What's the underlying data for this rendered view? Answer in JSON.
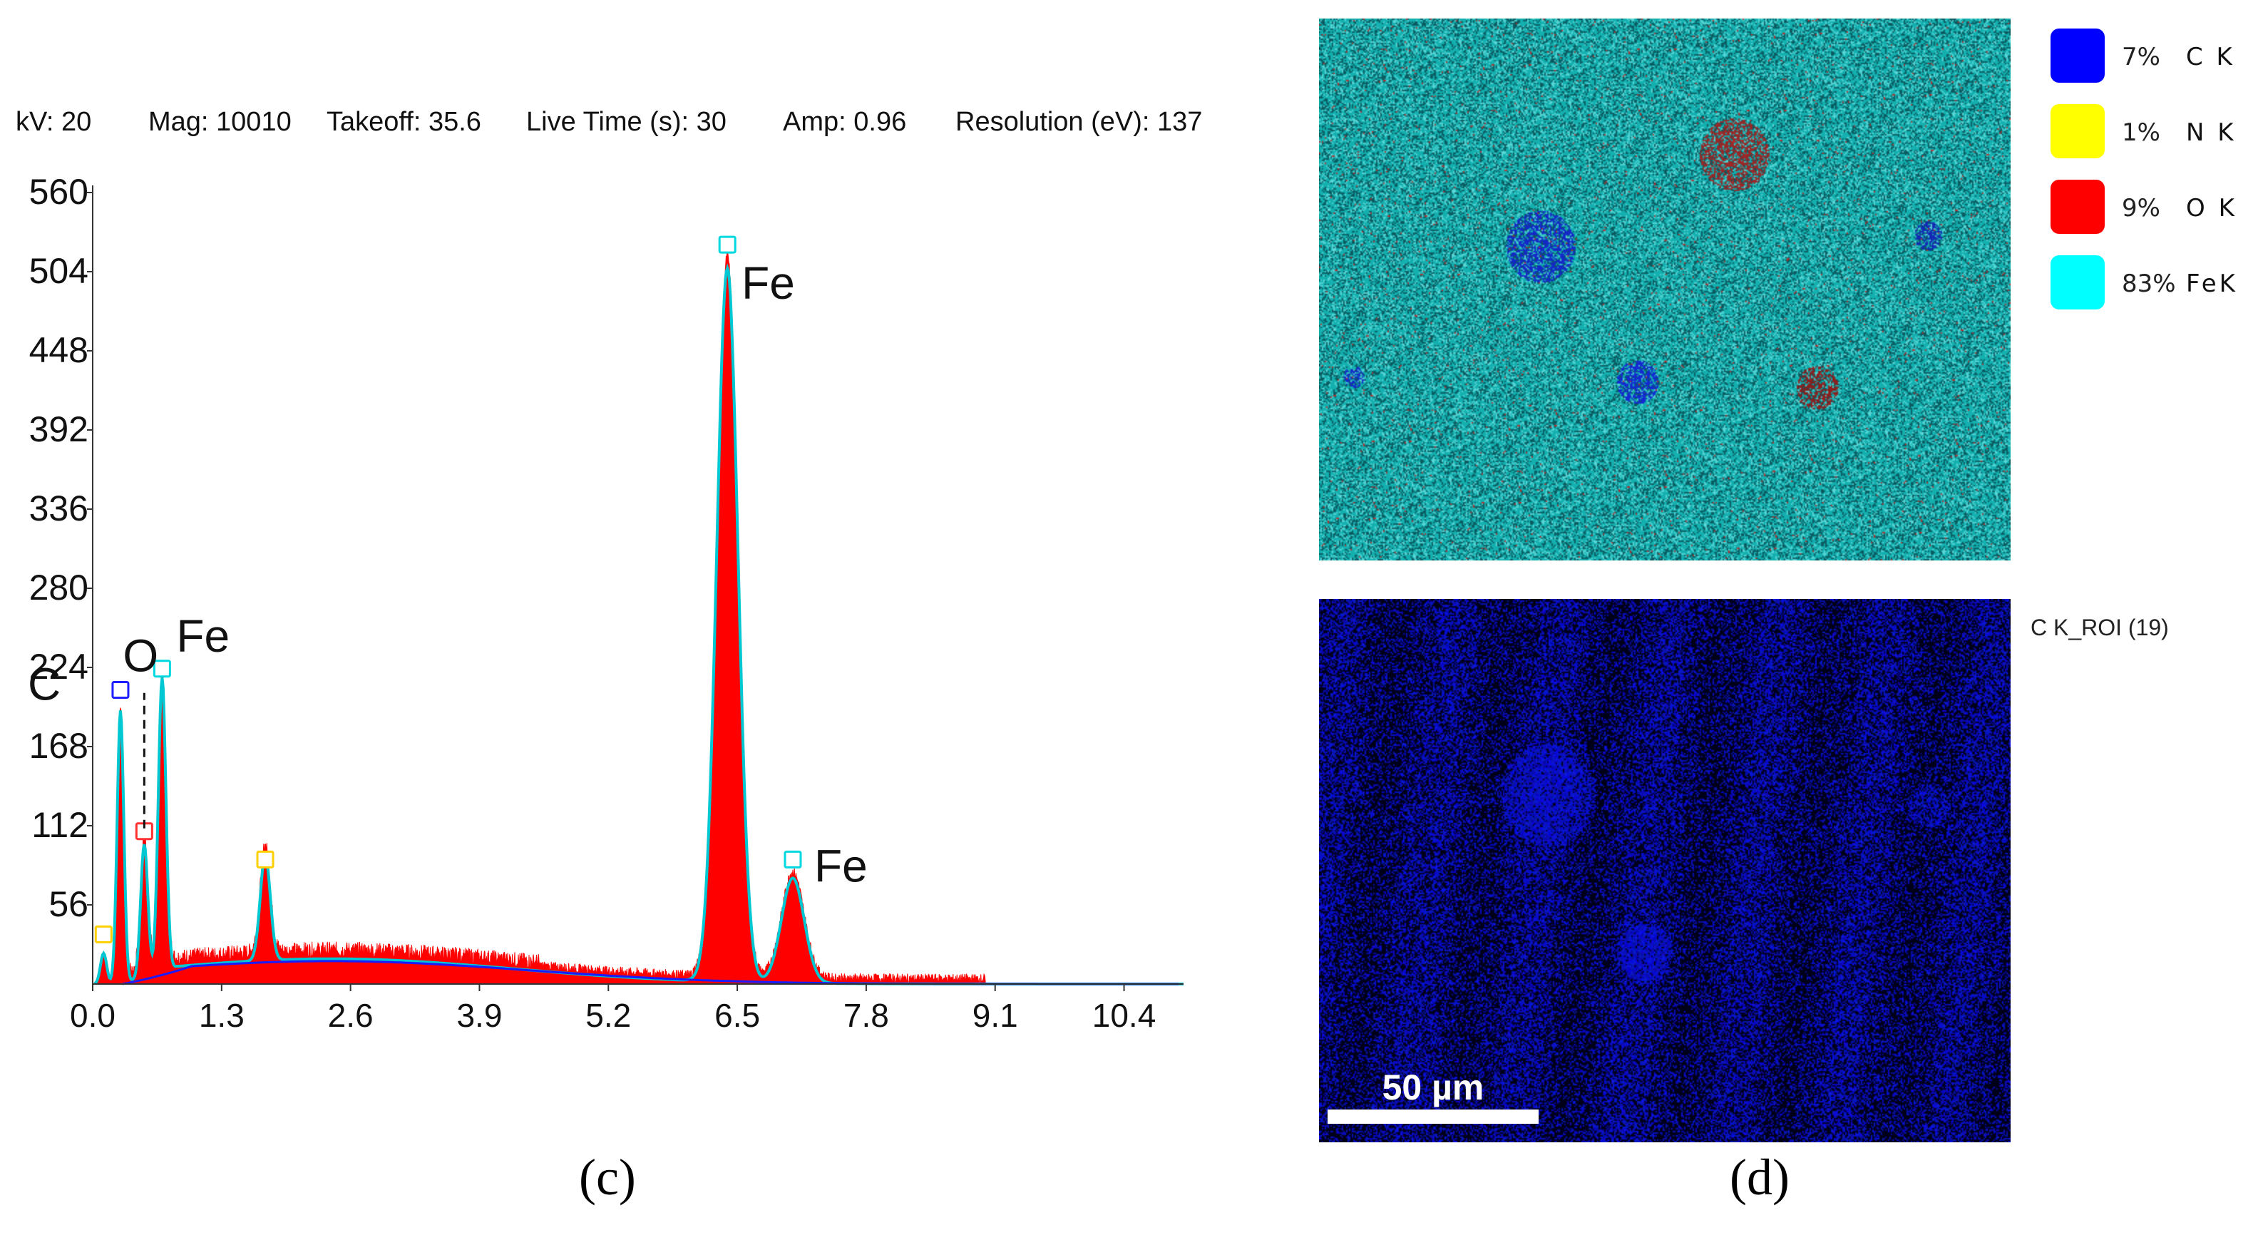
{
  "acquisition": {
    "kv": "kV: 20",
    "mag": "Mag: 10010",
    "takeoff": "Takeoff: 35.6",
    "live_time": "Live Time (s): 30",
    "amp": "Amp: 0.96",
    "resolution": "Resolution (eV): 137"
  },
  "chart_data": {
    "type": "area",
    "xlabel": "",
    "ylabel": "",
    "xlim": [
      0.0,
      11.0
    ],
    "ylim": [
      0,
      560
    ],
    "xticks": [
      "0.0",
      "1.3",
      "2.6",
      "3.9",
      "5.2",
      "6.5",
      "7.8",
      "9.1",
      "10.4"
    ],
    "yticks": [
      "56",
      "112",
      "168",
      "224",
      "280",
      "336",
      "392",
      "448",
      "504",
      "560"
    ],
    "colors": {
      "spectrum_fill": "#ff0000",
      "fit_line": "#00c8d2",
      "background_line": "#1a1aff"
    },
    "peaks": [
      {
        "energy": 0.11,
        "counts": 22,
        "element_label": "",
        "marker_color": "#ffd000"
      },
      {
        "energy": 0.28,
        "counts": 195,
        "element_label": "C",
        "marker_color": "#2020ff"
      },
      {
        "energy": 0.52,
        "counts": 95,
        "element_label": "O",
        "marker_color": "#ff3030"
      },
      {
        "energy": 0.7,
        "counts": 210,
        "element_label": "Fe",
        "marker_color": "#00d8e0"
      },
      {
        "energy": 1.74,
        "counts": 75,
        "element_label": "",
        "marker_color": "#ffd000"
      },
      {
        "energy": 6.4,
        "counts": 510,
        "element_label": "Fe",
        "marker_color": "#00d8e0"
      },
      {
        "energy": 7.06,
        "counts": 75,
        "element_label": "Fe",
        "marker_color": "#00d8e0"
      }
    ],
    "continuum": {
      "max_counts": 18,
      "max_energy": 2.4
    }
  },
  "panels": {
    "left": "(c)",
    "right": "(d)"
  },
  "legend": [
    {
      "percent": "7%",
      "element": "C K",
      "color": "#0000ff"
    },
    {
      "percent": "1%",
      "element": "N K",
      "color": "#ffff00"
    },
    {
      "percent": "9%",
      "element": "O K",
      "color": "#ff0000"
    },
    {
      "percent": "83%",
      "element": "FeK",
      "color": "#00ffff"
    }
  ],
  "roi_label": "C K_ROI (19)",
  "scale_bar": "50 µm"
}
